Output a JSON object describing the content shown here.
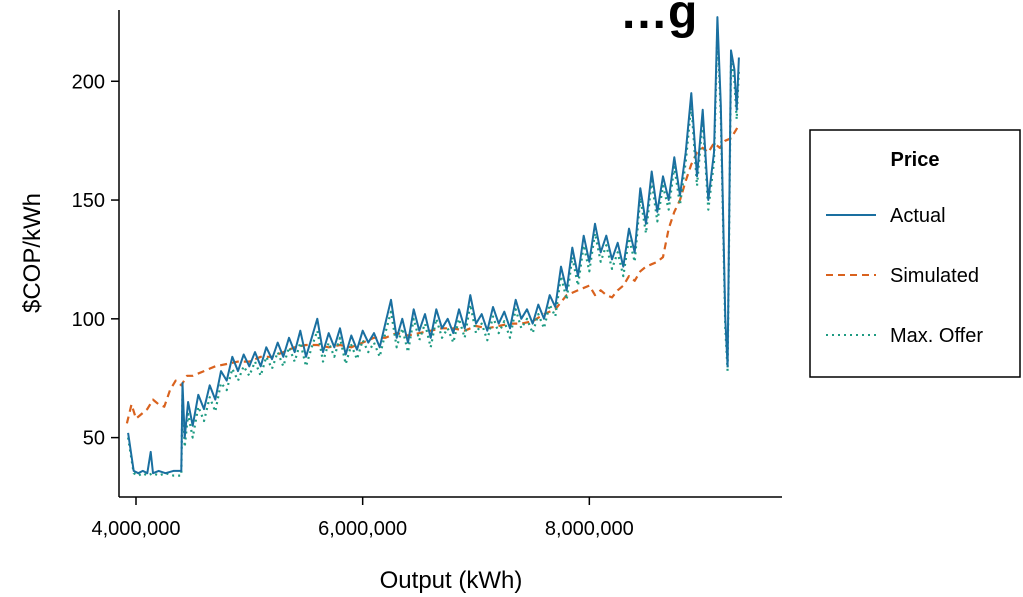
{
  "chart_data": {
    "type": "line",
    "title": "…g",
    "xlabel": "Output (kWh)",
    "ylabel": "$COP/kWh",
    "xlim": [
      3850000,
      9700000
    ],
    "ylim": [
      25,
      230
    ],
    "xticks": [
      4000000,
      6000000,
      8000000
    ],
    "xtick_labels": [
      "4,000,000",
      "6,000,000",
      "8,000,000"
    ],
    "yticks": [
      50,
      100,
      150,
      200
    ],
    "ytick_labels": [
      "50",
      "100",
      "150",
      "200"
    ],
    "grid": false,
    "legend": {
      "title": "Price",
      "placement": "right",
      "entries": [
        "Actual",
        "Simulated",
        "Max. Offer"
      ]
    },
    "series": [
      {
        "name": "Actual",
        "color": "#1a6fa0",
        "style": "solid",
        "points": [
          [
            3930000,
            52
          ],
          [
            3980000,
            36
          ],
          [
            4020000,
            35
          ],
          [
            4060000,
            36
          ],
          [
            4100000,
            35
          ],
          [
            4130000,
            44
          ],
          [
            4150000,
            35
          ],
          [
            4200000,
            36
          ],
          [
            4260000,
            35
          ],
          [
            4330000,
            36
          ],
          [
            4400000,
            36
          ],
          [
            4410000,
            73
          ],
          [
            4430000,
            50
          ],
          [
            4460000,
            65
          ],
          [
            4500000,
            55
          ],
          [
            4550000,
            68
          ],
          [
            4600000,
            62
          ],
          [
            4650000,
            72
          ],
          [
            4700000,
            66
          ],
          [
            4750000,
            78
          ],
          [
            4800000,
            74
          ],
          [
            4850000,
            84
          ],
          [
            4900000,
            78
          ],
          [
            4950000,
            85
          ],
          [
            5000000,
            80
          ],
          [
            5050000,
            86
          ],
          [
            5100000,
            80
          ],
          [
            5150000,
            88
          ],
          [
            5200000,
            83
          ],
          [
            5250000,
            90
          ],
          [
            5300000,
            84
          ],
          [
            5350000,
            92
          ],
          [
            5400000,
            86
          ],
          [
            5450000,
            95
          ],
          [
            5500000,
            84
          ],
          [
            5550000,
            92
          ],
          [
            5600000,
            100
          ],
          [
            5650000,
            86
          ],
          [
            5700000,
            94
          ],
          [
            5750000,
            88
          ],
          [
            5800000,
            96
          ],
          [
            5850000,
            85
          ],
          [
            5900000,
            93
          ],
          [
            5950000,
            87
          ],
          [
            6000000,
            95
          ],
          [
            6050000,
            90
          ],
          [
            6100000,
            94
          ],
          [
            6150000,
            88
          ],
          [
            6200000,
            98
          ],
          [
            6250000,
            108
          ],
          [
            6300000,
            92
          ],
          [
            6350000,
            100
          ],
          [
            6400000,
            90
          ],
          [
            6450000,
            104
          ],
          [
            6500000,
            95
          ],
          [
            6550000,
            102
          ],
          [
            6600000,
            92
          ],
          [
            6650000,
            104
          ],
          [
            6700000,
            96
          ],
          [
            6750000,
            100
          ],
          [
            6800000,
            94
          ],
          [
            6850000,
            104
          ],
          [
            6900000,
            96
          ],
          [
            6950000,
            110
          ],
          [
            7000000,
            98
          ],
          [
            7050000,
            102
          ],
          [
            7100000,
            95
          ],
          [
            7150000,
            105
          ],
          [
            7200000,
            98
          ],
          [
            7250000,
            103
          ],
          [
            7300000,
            96
          ],
          [
            7350000,
            108
          ],
          [
            7400000,
            100
          ],
          [
            7450000,
            104
          ],
          [
            7500000,
            98
          ],
          [
            7550000,
            106
          ],
          [
            7600000,
            100
          ],
          [
            7650000,
            110
          ],
          [
            7700000,
            105
          ],
          [
            7750000,
            122
          ],
          [
            7800000,
            112
          ],
          [
            7850000,
            130
          ],
          [
            7900000,
            118
          ],
          [
            7950000,
            135
          ],
          [
            8000000,
            124
          ],
          [
            8050000,
            140
          ],
          [
            8100000,
            128
          ],
          [
            8150000,
            135
          ],
          [
            8200000,
            125
          ],
          [
            8250000,
            132
          ],
          [
            8300000,
            122
          ],
          [
            8350000,
            138
          ],
          [
            8400000,
            128
          ],
          [
            8450000,
            155
          ],
          [
            8500000,
            140
          ],
          [
            8550000,
            162
          ],
          [
            8600000,
            145
          ],
          [
            8650000,
            160
          ],
          [
            8700000,
            150
          ],
          [
            8750000,
            168
          ],
          [
            8800000,
            152
          ],
          [
            8850000,
            170
          ],
          [
            8900000,
            195
          ],
          [
            8950000,
            160
          ],
          [
            9000000,
            188
          ],
          [
            9050000,
            150
          ],
          [
            9100000,
            170
          ],
          [
            9130000,
            227
          ],
          [
            9160000,
            190
          ],
          [
            9200000,
            100
          ],
          [
            9220000,
            80
          ],
          [
            9250000,
            213
          ],
          [
            9280000,
            205
          ],
          [
            9300000,
            188
          ],
          [
            9320000,
            210
          ]
        ]
      },
      {
        "name": "Simulated",
        "color": "#d9621e",
        "style": "dashed",
        "points": [
          [
            3920000,
            56
          ],
          [
            3960000,
            64
          ],
          [
            4000000,
            58
          ],
          [
            4050000,
            60
          ],
          [
            4100000,
            62
          ],
          [
            4150000,
            66
          ],
          [
            4200000,
            64
          ],
          [
            4250000,
            63
          ],
          [
            4300000,
            70
          ],
          [
            4350000,
            74
          ],
          [
            4400000,
            72
          ],
          [
            4450000,
            76
          ],
          [
            4500000,
            76
          ],
          [
            4600000,
            78
          ],
          [
            4700000,
            80
          ],
          [
            4800000,
            81
          ],
          [
            4900000,
            82
          ],
          [
            5000000,
            82
          ],
          [
            5100000,
            84
          ],
          [
            5200000,
            84
          ],
          [
            5300000,
            86
          ],
          [
            5400000,
            88
          ],
          [
            5500000,
            89
          ],
          [
            5600000,
            89
          ],
          [
            5700000,
            88
          ],
          [
            5800000,
            89
          ],
          [
            5900000,
            88
          ],
          [
            6000000,
            90
          ],
          [
            6100000,
            92
          ],
          [
            6200000,
            92
          ],
          [
            6300000,
            94
          ],
          [
            6400000,
            93
          ],
          [
            6500000,
            94
          ],
          [
            6600000,
            95
          ],
          [
            6700000,
            96
          ],
          [
            6800000,
            96
          ],
          [
            6900000,
            95
          ],
          [
            7000000,
            97
          ],
          [
            7100000,
            96
          ],
          [
            7200000,
            97
          ],
          [
            7300000,
            98
          ],
          [
            7400000,
            98
          ],
          [
            7500000,
            99
          ],
          [
            7600000,
            102
          ],
          [
            7700000,
            104
          ],
          [
            7800000,
            110
          ],
          [
            7900000,
            112
          ],
          [
            8000000,
            114
          ],
          [
            8050000,
            110
          ],
          [
            8100000,
            112
          ],
          [
            8150000,
            110
          ],
          [
            8200000,
            109
          ],
          [
            8250000,
            112
          ],
          [
            8300000,
            114
          ],
          [
            8350000,
            118
          ],
          [
            8400000,
            116
          ],
          [
            8450000,
            120
          ],
          [
            8500000,
            122
          ],
          [
            8550000,
            123
          ],
          [
            8600000,
            124
          ],
          [
            8650000,
            126
          ],
          [
            8700000,
            138
          ],
          [
            8750000,
            145
          ],
          [
            8800000,
            150
          ],
          [
            8850000,
            158
          ],
          [
            8900000,
            165
          ],
          [
            8950000,
            170
          ],
          [
            9000000,
            172
          ],
          [
            9050000,
            170
          ],
          [
            9100000,
            174
          ],
          [
            9150000,
            172
          ],
          [
            9200000,
            175
          ],
          [
            9250000,
            176
          ],
          [
            9300000,
            180
          ],
          [
            9320000,
            182
          ]
        ]
      },
      {
        "name": "Max. Offer",
        "color": "#1e9b82",
        "style": "dotted",
        "points": [
          [
            3930000,
            50
          ],
          [
            3980000,
            35
          ],
          [
            4020000,
            34
          ],
          [
            4060000,
            35
          ],
          [
            4100000,
            34
          ],
          [
            4150000,
            35
          ],
          [
            4200000,
            34
          ],
          [
            4260000,
            35
          ],
          [
            4330000,
            34
          ],
          [
            4400000,
            34
          ],
          [
            4410000,
            68
          ],
          [
            4430000,
            46
          ],
          [
            4460000,
            60
          ],
          [
            4500000,
            50
          ],
          [
            4550000,
            63
          ],
          [
            4600000,
            57
          ],
          [
            4650000,
            67
          ],
          [
            4700000,
            61
          ],
          [
            4750000,
            73
          ],
          [
            4800000,
            70
          ],
          [
            4850000,
            79
          ],
          [
            4900000,
            74
          ],
          [
            4950000,
            80
          ],
          [
            5000000,
            76
          ],
          [
            5050000,
            82
          ],
          [
            5100000,
            76
          ],
          [
            5150000,
            84
          ],
          [
            5200000,
            79
          ],
          [
            5250000,
            86
          ],
          [
            5300000,
            80
          ],
          [
            5350000,
            88
          ],
          [
            5400000,
            82
          ],
          [
            5450000,
            90
          ],
          [
            5500000,
            80
          ],
          [
            5550000,
            88
          ],
          [
            5600000,
            95
          ],
          [
            5650000,
            82
          ],
          [
            5700000,
            90
          ],
          [
            5750000,
            84
          ],
          [
            5800000,
            92
          ],
          [
            5850000,
            81
          ],
          [
            5900000,
            89
          ],
          [
            5950000,
            83
          ],
          [
            6000000,
            91
          ],
          [
            6050000,
            86
          ],
          [
            6100000,
            90
          ],
          [
            6150000,
            84
          ],
          [
            6200000,
            94
          ],
          [
            6250000,
            103
          ],
          [
            6300000,
            88
          ],
          [
            6350000,
            96
          ],
          [
            6400000,
            86
          ],
          [
            6450000,
            100
          ],
          [
            6500000,
            91
          ],
          [
            6550000,
            98
          ],
          [
            6600000,
            88
          ],
          [
            6650000,
            100
          ],
          [
            6700000,
            92
          ],
          [
            6750000,
            96
          ],
          [
            6800000,
            90
          ],
          [
            6850000,
            100
          ],
          [
            6900000,
            92
          ],
          [
            6950000,
            106
          ],
          [
            7000000,
            94
          ],
          [
            7050000,
            98
          ],
          [
            7100000,
            91
          ],
          [
            7150000,
            101
          ],
          [
            7200000,
            94
          ],
          [
            7250000,
            99
          ],
          [
            7300000,
            92
          ],
          [
            7350000,
            104
          ],
          [
            7400000,
            96
          ],
          [
            7450000,
            100
          ],
          [
            7500000,
            94
          ],
          [
            7550000,
            102
          ],
          [
            7600000,
            96
          ],
          [
            7650000,
            106
          ],
          [
            7700000,
            101
          ],
          [
            7750000,
            118
          ],
          [
            7800000,
            108
          ],
          [
            7850000,
            126
          ],
          [
            7900000,
            114
          ],
          [
            7950000,
            131
          ],
          [
            8000000,
            120
          ],
          [
            8050000,
            136
          ],
          [
            8100000,
            124
          ],
          [
            8150000,
            131
          ],
          [
            8200000,
            121
          ],
          [
            8250000,
            128
          ],
          [
            8300000,
            118
          ],
          [
            8350000,
            134
          ],
          [
            8400000,
            124
          ],
          [
            8450000,
            151
          ],
          [
            8500000,
            136
          ],
          [
            8550000,
            158
          ],
          [
            8600000,
            141
          ],
          [
            8650000,
            156
          ],
          [
            8700000,
            146
          ],
          [
            8750000,
            164
          ],
          [
            8800000,
            148
          ],
          [
            8850000,
            166
          ],
          [
            8900000,
            190
          ],
          [
            8950000,
            156
          ],
          [
            9000000,
            184
          ],
          [
            9050000,
            146
          ],
          [
            9100000,
            166
          ],
          [
            9130000,
            222
          ],
          [
            9160000,
            186
          ],
          [
            9200000,
            96
          ],
          [
            9220000,
            78
          ],
          [
            9250000,
            208
          ],
          [
            9280000,
            200
          ],
          [
            9300000,
            184
          ],
          [
            9320000,
            205
          ]
        ]
      }
    ]
  }
}
